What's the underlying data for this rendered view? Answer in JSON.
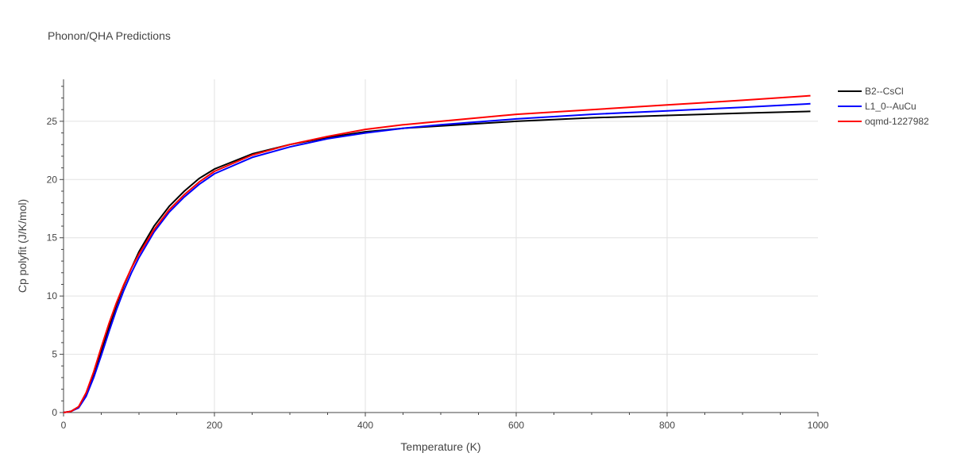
{
  "chart_data": {
    "type": "line",
    "title": "Phonon/QHA Predictions",
    "xlabel": "Temperature (K)",
    "ylabel": "Cp polyfit (J/K/mol)",
    "xlim": [
      0,
      1000
    ],
    "ylim": [
      0,
      28.6
    ],
    "xticks": [
      0,
      200,
      400,
      600,
      800,
      1000
    ],
    "yticks": [
      0,
      5,
      10,
      15,
      20,
      25
    ],
    "grid": true,
    "legend_position": "top-right",
    "series": [
      {
        "name": "B2--CsCl",
        "color": "#000000",
        "x": [
          0,
          10,
          20,
          30,
          40,
          50,
          60,
          70,
          80,
          90,
          100,
          120,
          140,
          160,
          180,
          200,
          250,
          300,
          350,
          400,
          450,
          500,
          600,
          700,
          800,
          900,
          990
        ],
        "y": [
          0,
          0.1,
          0.5,
          1.6,
          3.3,
          5.3,
          7.3,
          9.2,
          10.9,
          12.4,
          13.8,
          16.0,
          17.7,
          19.0,
          20.1,
          20.9,
          22.2,
          23.0,
          23.6,
          24.1,
          24.4,
          24.6,
          25.0,
          25.3,
          25.5,
          25.7,
          25.85
        ]
      },
      {
        "name": "L1_0--AuCu",
        "color": "#0000ff",
        "x": [
          0,
          10,
          20,
          30,
          40,
          50,
          60,
          70,
          80,
          90,
          100,
          120,
          140,
          160,
          180,
          200,
          250,
          300,
          350,
          400,
          450,
          500,
          600,
          700,
          800,
          900,
          990
        ],
        "y": [
          0,
          0.1,
          0.4,
          1.4,
          3.0,
          4.9,
          6.9,
          8.8,
          10.5,
          12.0,
          13.3,
          15.5,
          17.2,
          18.5,
          19.6,
          20.5,
          21.9,
          22.8,
          23.5,
          24.0,
          24.4,
          24.7,
          25.2,
          25.6,
          25.9,
          26.2,
          26.5
        ]
      },
      {
        "name": "oqmd-1227982",
        "color": "#ff0000",
        "x": [
          0,
          10,
          20,
          30,
          40,
          50,
          60,
          70,
          80,
          90,
          100,
          120,
          140,
          160,
          180,
          200,
          250,
          300,
          350,
          400,
          450,
          500,
          600,
          700,
          800,
          900,
          990
        ],
        "y": [
          0,
          0.1,
          0.5,
          1.7,
          3.5,
          5.6,
          7.6,
          9.4,
          11.0,
          12.4,
          13.6,
          15.7,
          17.4,
          18.7,
          19.8,
          20.7,
          22.1,
          23.0,
          23.7,
          24.3,
          24.7,
          25.0,
          25.6,
          26.0,
          26.4,
          26.8,
          27.2
        ]
      }
    ]
  }
}
